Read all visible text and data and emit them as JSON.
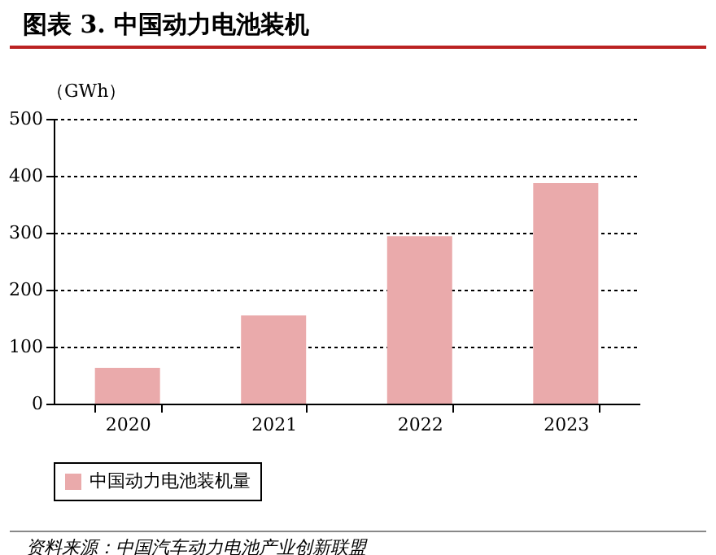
{
  "chart_data": {
    "type": "bar",
    "title": "图表 3. 中国动力电池装机",
    "ylabel": "（GWh）",
    "categories": [
      "2020",
      "2021",
      "2022",
      "2023"
    ],
    "series": [
      {
        "name": "中国动力电池装机量",
        "color": "#eaaaab",
        "values": [
          63,
          155,
          294,
          387
        ]
      }
    ],
    "ylim": [
      0,
      500
    ],
    "yticks": [
      0,
      100,
      200,
      300,
      400,
      500
    ],
    "grid": "y",
    "legend": "bottom",
    "annotations": [
      "资料来源：中国汽车动力电池产业创新联盟"
    ]
  }
}
